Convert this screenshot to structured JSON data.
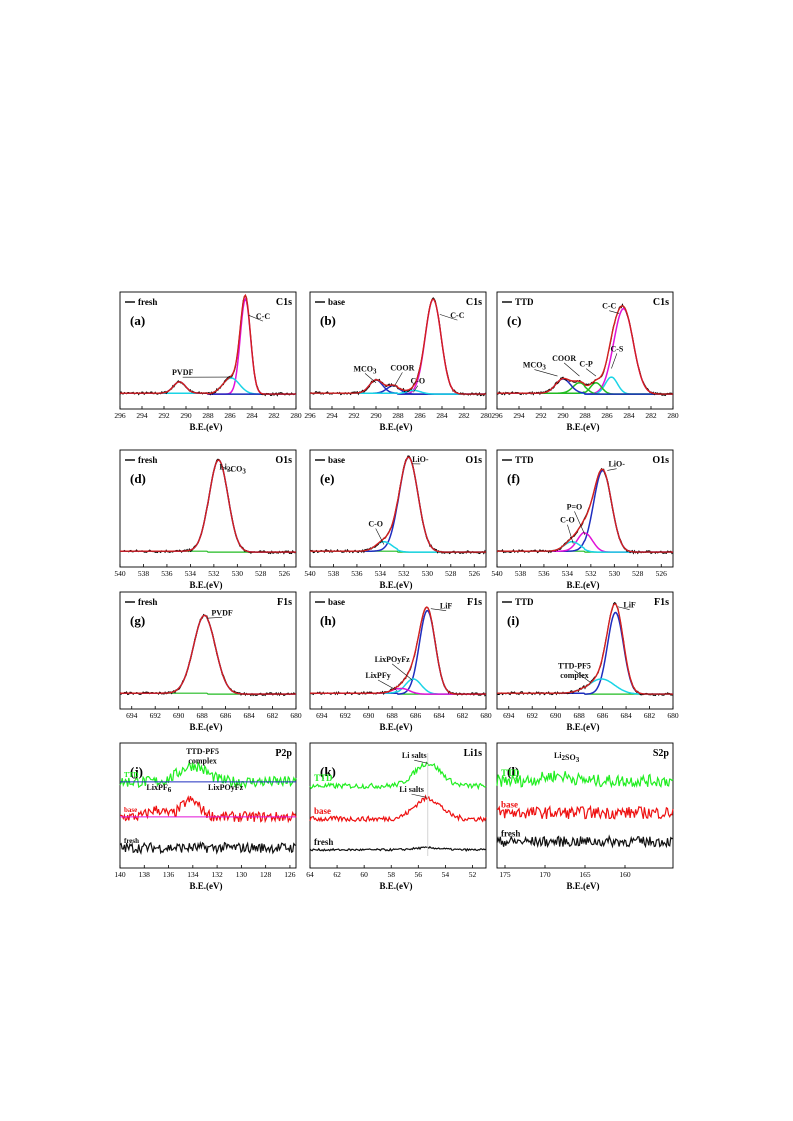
{
  "figure": {
    "xlabel": "B.E.(eV)",
    "colors": {
      "data": "#000000",
      "envelope": "#d42020",
      "peak_blue": "#1f2dbf",
      "peak_magenta": "#e012d8",
      "peak_cyan": "#1ad4e6",
      "baseline": "#22bb22",
      "ttd_trace": "#22ee22",
      "base_trace": "#ee1111",
      "fresh_trace": "#111111",
      "grid": "#c8c8c8"
    }
  },
  "chart_data": [
    {
      "id": "a",
      "panel_label": "(a)",
      "element": "C1s",
      "legend": "fresh",
      "type": "line",
      "xlim": [
        296,
        280
      ],
      "xticks": [
        296,
        294,
        292,
        290,
        288,
        286,
        284,
        282,
        280
      ],
      "peaks": [
        {
          "center": 284.6,
          "fwhm": 1.1,
          "height": 1.0,
          "role": "magenta"
        },
        {
          "center": 285.9,
          "fwhm": 1.8,
          "height": 0.17,
          "role": "cyan"
        },
        {
          "center": 290.6,
          "fwhm": 1.3,
          "height": 0.12,
          "role": "blue"
        }
      ],
      "annotations": [
        {
          "text": "C-C",
          "x": 283.0,
          "y": 0.82,
          "tx": 284.3,
          "ty": 0.86
        },
        {
          "text": "PVDF",
          "x": 290.3,
          "y": 0.23,
          "tx": 285.8,
          "ty": 0.21
        }
      ]
    },
    {
      "id": "b",
      "panel_label": "(b)",
      "element": "C1s",
      "legend": "base",
      "type": "line",
      "xlim": [
        296,
        280
      ],
      "xticks": [
        296,
        294,
        292,
        290,
        288,
        286,
        284,
        282,
        280
      ],
      "peaks": [
        {
          "center": 284.8,
          "fwhm": 1.7,
          "height": 1.0,
          "role": "magenta"
        },
        {
          "center": 290.0,
          "fwhm": 1.4,
          "height": 0.14,
          "role": "blue"
        },
        {
          "center": 288.4,
          "fwhm": 1.4,
          "height": 0.08,
          "role": "blue"
        },
        {
          "center": 286.6,
          "fwhm": 1.6,
          "height": 0.04,
          "role": "cyan"
        }
      ],
      "annotations": [
        {
          "text": "C-C",
          "x": 282.6,
          "y": 0.83,
          "tx": 284.2,
          "ty": 0.87
        },
        {
          "text": "MCO3",
          "x": 291.0,
          "y": 0.27,
          "tx": 290.0,
          "ty": 0.15
        },
        {
          "text": "COOR",
          "x": 287.6,
          "y": 0.28,
          "tx": 288.3,
          "ty": 0.12
        },
        {
          "text": "C-O",
          "x": 286.2,
          "y": 0.14,
          "tx": 286.6,
          "ty": 0.05
        }
      ]
    },
    {
      "id": "c",
      "panel_label": "(c)",
      "element": "C1s",
      "legend": "TTD",
      "type": "line",
      "xlim": [
        296,
        280
      ],
      "xticks": [
        296,
        294,
        292,
        290,
        288,
        286,
        284,
        282,
        280
      ],
      "peaks": [
        {
          "center": 284.5,
          "fwhm": 2.1,
          "height": 0.9,
          "role": "magenta"
        },
        {
          "center": 285.6,
          "fwhm": 1.3,
          "height": 0.18,
          "role": "cyan"
        },
        {
          "center": 287.0,
          "fwhm": 1.2,
          "height": 0.12,
          "role": "green"
        },
        {
          "center": 288.5,
          "fwhm": 1.4,
          "height": 0.11,
          "role": "green"
        },
        {
          "center": 290.0,
          "fwhm": 1.6,
          "height": 0.15,
          "role": "blue"
        }
      ],
      "annotations": [
        {
          "text": "C-C",
          "x": 285.8,
          "y": 0.93,
          "tx": 284.9,
          "ty": 0.88
        },
        {
          "text": "C-S",
          "x": 285.1,
          "y": 0.48,
          "tx": 285.6,
          "ty": 0.3
        },
        {
          "text": "COOR",
          "x": 289.9,
          "y": 0.38,
          "tx": 288.5,
          "ty": 0.22
        },
        {
          "text": "C-P",
          "x": 287.9,
          "y": 0.32,
          "tx": 287.0,
          "ty": 0.22
        },
        {
          "text": "MCO3",
          "x": 292.6,
          "y": 0.31,
          "tx": 290.5,
          "ty": 0.22
        }
      ]
    },
    {
      "id": "d",
      "panel_label": "(d)",
      "element": "O1s",
      "legend": "fresh",
      "type": "line",
      "xlim": [
        540,
        525
      ],
      "xticks": [
        540,
        538,
        536,
        534,
        532,
        530,
        528,
        526
      ],
      "peaks": [
        {
          "center": 531.6,
          "fwhm": 1.9,
          "height": 0.97,
          "role": "blue"
        }
      ],
      "annotations": [
        {
          "text": "Li2CO3",
          "x": 530.4,
          "y": 0.9,
          "tx": 531.3,
          "ty": 0.93
        }
      ]
    },
    {
      "id": "e",
      "panel_label": "(e)",
      "element": "O1s",
      "legend": "base",
      "type": "line",
      "xlim": [
        540,
        525
      ],
      "xticks": [
        540,
        538,
        536,
        534,
        532,
        530,
        528,
        526
      ],
      "peaks": [
        {
          "center": 531.6,
          "fwhm": 1.9,
          "height": 1.0,
          "role": "blue"
        },
        {
          "center": 533.7,
          "fwhm": 1.6,
          "height": 0.1,
          "role": "cyan"
        }
      ],
      "annotations": [
        {
          "text": "LiO-",
          "x": 530.6,
          "y": 0.98,
          "tx": 531.3,
          "ty": 0.96
        },
        {
          "text": "C-O",
          "x": 534.4,
          "y": 0.3,
          "tx": 533.7,
          "ty": 0.11
        }
      ]
    },
    {
      "id": "f",
      "panel_label": "(f)",
      "element": "O1s",
      "legend": "TTD",
      "type": "line",
      "xlim": [
        540,
        525
      ],
      "xticks": [
        540,
        538,
        536,
        534,
        532,
        530,
        528,
        526
      ],
      "peaks": [
        {
          "center": 531.0,
          "fwhm": 1.8,
          "height": 0.86,
          "role": "blue"
        },
        {
          "center": 532.5,
          "fwhm": 1.5,
          "height": 0.2,
          "role": "magenta"
        },
        {
          "center": 533.6,
          "fwhm": 1.6,
          "height": 0.1,
          "role": "cyan"
        }
      ],
      "annotations": [
        {
          "text": "LiO-",
          "x": 529.8,
          "y": 0.93,
          "tx": 530.6,
          "ty": 0.89
        },
        {
          "text": "P=O",
          "x": 533.4,
          "y": 0.48,
          "tx": 532.5,
          "ty": 0.21
        },
        {
          "text": "C-O",
          "x": 534.0,
          "y": 0.34,
          "tx": 533.5,
          "ty": 0.12
        }
      ]
    },
    {
      "id": "g",
      "panel_label": "(g)",
      "element": "F1s",
      "legend": "fresh",
      "type": "line",
      "xlim": [
        695,
        680
      ],
      "xticks": [
        694,
        692,
        690,
        688,
        686,
        684,
        682,
        680
      ],
      "peaks": [
        {
          "center": 687.8,
          "fwhm": 2.2,
          "height": 0.82,
          "role": "blue"
        }
      ],
      "annotations": [
        {
          "text": "PVDF",
          "x": 686.3,
          "y": 0.86,
          "tx": 687.6,
          "ty": 0.83
        }
      ]
    },
    {
      "id": "h",
      "panel_label": "(h)",
      "element": "F1s",
      "legend": "base",
      "type": "line",
      "xlim": [
        695,
        680
      ],
      "xticks": [
        694,
        692,
        690,
        688,
        686,
        684,
        682,
        680
      ],
      "peaks": [
        {
          "center": 685.0,
          "fwhm": 1.6,
          "height": 0.88,
          "role": "blue"
        },
        {
          "center": 686.2,
          "fwhm": 1.6,
          "height": 0.16,
          "role": "cyan"
        },
        {
          "center": 687.2,
          "fwhm": 1.6,
          "height": 0.06,
          "role": "magenta"
        }
      ],
      "annotations": [
        {
          "text": "LiF",
          "x": 683.4,
          "y": 0.93,
          "tx": 684.7,
          "ty": 0.93
        },
        {
          "text": "LixPOyFz",
          "x": 688.0,
          "y": 0.37,
          "tx": 686.3,
          "ty": 0.18
        },
        {
          "text": "LixPFy",
          "x": 689.2,
          "y": 0.2,
          "tx": 687.6,
          "ty": 0.07
        }
      ]
    },
    {
      "id": "i",
      "panel_label": "(i)",
      "element": "F1s",
      "legend": "TTD",
      "type": "line",
      "xlim": [
        695,
        680
      ],
      "xticks": [
        694,
        692,
        690,
        688,
        686,
        684,
        682,
        680
      ],
      "peaks": [
        {
          "center": 684.9,
          "fwhm": 1.6,
          "height": 0.86,
          "role": "blue"
        },
        {
          "center": 686.1,
          "fwhm": 2.6,
          "height": 0.16,
          "role": "cyan"
        }
      ],
      "annotations": [
        {
          "text": "LiF",
          "x": 683.7,
          "y": 0.94,
          "tx": 684.7,
          "ty": 0.95
        },
        {
          "text": "TTD-PF5",
          "x": 688.4,
          "y": 0.3,
          "tx": 687.0,
          "ty": 0.15
        },
        {
          "text": "complex",
          "x": 688.4,
          "y": 0.2,
          "tx": null,
          "ty": null
        }
      ]
    },
    {
      "id": "j",
      "panel_label": "(j)",
      "element": "P2p",
      "type": "line",
      "xlim": [
        140,
        125.5
      ],
      "xticks": [
        140,
        138,
        136,
        134,
        132,
        130,
        128,
        126
      ],
      "traces": [
        {
          "name": "TTD",
          "offset": 0.72,
          "amp": 0.11,
          "peaks": [
            {
              "center": 134.0,
              "fwhm": 2.6,
              "height": 0.16
            }
          ],
          "role": "ttd_trace"
        },
        {
          "name": "base",
          "offset": 0.38,
          "amp": 0.1,
          "peaks": [
            {
              "center": 134.2,
              "fwhm": 1.8,
              "height": 0.16
            },
            {
              "center": 137.0,
              "fwhm": 1.5,
              "height": 0.07
            }
          ],
          "role": "base_trace"
        },
        {
          "name": "fresh",
          "offset": 0.08,
          "amp": 0.1,
          "peaks": [],
          "role": "fresh_trace"
        }
      ],
      "annotations": [
        {
          "text": "TTD-PF5",
          "x": 133.2,
          "y": 0.99,
          "tx": null,
          "ty": null
        },
        {
          "text": "complex",
          "x": 133.2,
          "y": 0.9,
          "tx": null,
          "ty": null
        },
        {
          "text": "LixPF6",
          "x": 136.8,
          "y": 0.64,
          "tx": null,
          "ty": null
        },
        {
          "text": "LixPOyFz",
          "x": 131.3,
          "y": 0.64,
          "tx": null,
          "ty": null
        }
      ]
    },
    {
      "id": "k",
      "panel_label": "(k)",
      "element": "Li1s",
      "type": "line",
      "xlim": [
        64,
        51
      ],
      "xticks": [
        64,
        62,
        60,
        58,
        56,
        54,
        52
      ],
      "traces": [
        {
          "name": "TTD",
          "offset": 0.68,
          "amp": 0.05,
          "peaks": [
            {
              "center": 55.3,
              "fwhm": 2.3,
              "height": 0.22
            }
          ],
          "role": "ttd_trace"
        },
        {
          "name": "base",
          "offset": 0.36,
          "amp": 0.05,
          "peaks": [
            {
              "center": 55.3,
              "fwhm": 2.3,
              "height": 0.2
            }
          ],
          "role": "base_trace"
        },
        {
          "name": "fresh",
          "offset": 0.06,
          "amp": 0.02,
          "peaks": [
            {
              "center": 55.3,
              "fwhm": 2.3,
              "height": 0.02
            }
          ],
          "role": "fresh_trace"
        }
      ],
      "annotations": [
        {
          "text": "Li salts",
          "x": 56.3,
          "y": 0.95,
          "tx": 55.3,
          "ty": 0.9
        },
        {
          "text": "Li salts",
          "x": 56.5,
          "y": 0.62,
          "tx": 55.4,
          "ty": 0.57
        }
      ]
    },
    {
      "id": "l",
      "panel_label": "(l)",
      "element": "S2p",
      "type": "line",
      "xlim": [
        176,
        154
      ],
      "xticks": [
        175,
        170,
        165,
        160
      ],
      "traces": [
        {
          "name": "TTD",
          "offset": 0.73,
          "amp": 0.12,
          "peaks": [
            {
              "center": 168.5,
              "fwhm": 4.0,
              "height": 0.05
            }
          ],
          "role": "ttd_trace"
        },
        {
          "name": "base",
          "offset": 0.42,
          "amp": 0.12,
          "peaks": [],
          "role": "base_trace"
        },
        {
          "name": "fresh",
          "offset": 0.14,
          "amp": 0.1,
          "peaks": [],
          "role": "fresh_trace"
        }
      ],
      "annotations": [
        {
          "text": "Li2SO3",
          "x": 167.3,
          "y": 0.95,
          "tx": null,
          "ty": null
        }
      ]
    }
  ]
}
